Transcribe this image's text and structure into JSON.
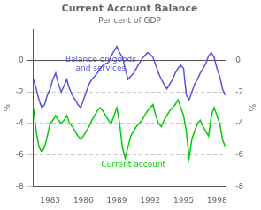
{
  "chart_data": {
    "type": "line",
    "title": "Current Account Balance",
    "subtitle": "Per cent of GDP",
    "ylabel": "%",
    "y2label": "%",
    "x": [
      1981.5,
      1981.75,
      1982.0,
      1982.25,
      1982.5,
      1982.75,
      1983.0,
      1983.25,
      1983.5,
      1983.75,
      1984.0,
      1984.25,
      1984.5,
      1984.75,
      1985.0,
      1985.25,
      1985.5,
      1985.75,
      1986.0,
      1986.25,
      1986.5,
      1986.75,
      1987.0,
      1987.25,
      1987.5,
      1987.75,
      1988.0,
      1988.25,
      1988.5,
      1988.75,
      1989.0,
      1989.25,
      1989.5,
      1989.75,
      1990.0,
      1990.25,
      1990.5,
      1990.75,
      1991.0,
      1991.25,
      1991.5,
      1991.75,
      1992.0,
      1992.25,
      1992.5,
      1992.75,
      1993.0,
      1993.25,
      1993.5,
      1993.75,
      1994.0,
      1994.25,
      1994.5,
      1994.75,
      1995.0,
      1995.25,
      1995.5,
      1995.75,
      1996.0,
      1996.25,
      1996.5,
      1996.75,
      1997.0,
      1997.25,
      1997.5,
      1997.75,
      1998.0,
      1998.25,
      1998.5,
      1998.75
    ],
    "series": [
      {
        "name": "Balance on goods\nand services",
        "color": "#5555dd",
        "values": [
          -1.2,
          -1.8,
          -2.5,
          -3.0,
          -2.8,
          -2.2,
          -1.8,
          -1.2,
          -0.8,
          -1.5,
          -2.0,
          -1.6,
          -1.2,
          -1.8,
          -2.2,
          -2.5,
          -2.8,
          -3.0,
          -2.5,
          -2.0,
          -1.5,
          -1.2,
          -1.0,
          -0.8,
          -0.5,
          -0.3,
          -0.2,
          -0.1,
          0.3,
          0.6,
          0.9,
          0.5,
          0.2,
          -0.5,
          -1.2,
          -1.0,
          -0.8,
          -0.5,
          -0.2,
          0.1,
          0.3,
          0.5,
          0.4,
          0.2,
          -0.3,
          -0.8,
          -1.2,
          -1.5,
          -1.8,
          -1.5,
          -1.2,
          -0.8,
          -0.5,
          -0.3,
          -0.5,
          -2.2,
          -2.5,
          -2.0,
          -1.5,
          -1.2,
          -0.8,
          -0.5,
          -0.2,
          0.3,
          0.5,
          0.2,
          -0.5,
          -1.0,
          -1.8,
          -2.2
        ]
      },
      {
        "name": "Current account",
        "color": "#00cc00",
        "values": [
          -3.0,
          -4.5,
          -5.5,
          -5.8,
          -5.5,
          -4.8,
          -4.0,
          -3.8,
          -3.5,
          -3.8,
          -4.0,
          -3.8,
          -3.5,
          -4.0,
          -4.2,
          -4.5,
          -4.8,
          -5.0,
          -4.8,
          -4.5,
          -4.2,
          -3.8,
          -3.5,
          -3.2,
          -3.0,
          -3.2,
          -3.5,
          -3.8,
          -4.0,
          -3.5,
          -3.0,
          -4.0,
          -5.5,
          -6.2,
          -5.5,
          -4.8,
          -4.5,
          -4.2,
          -4.0,
          -3.8,
          -3.5,
          -3.2,
          -3.0,
          -2.8,
          -3.5,
          -4.0,
          -4.2,
          -3.8,
          -3.5,
          -3.2,
          -3.0,
          -2.8,
          -2.5,
          -3.0,
          -3.5,
          -4.5,
          -6.2,
          -5.0,
          -4.5,
          -4.0,
          -3.8,
          -4.2,
          -4.5,
          -4.8,
          -3.5,
          -3.0,
          -3.5,
          -4.0,
          -5.0,
          -5.5
        ]
      }
    ],
    "xlim": [
      1981.5,
      1998.8
    ],
    "xticks": [
      1983,
      1986,
      1989,
      1992,
      1995,
      1998
    ],
    "ylim": [
      -8,
      2
    ],
    "yticks": [
      -8,
      -6,
      -4,
      -2,
      0
    ],
    "y2lim": [
      -8,
      2
    ],
    "y2ticks": [
      -8,
      -6,
      -4,
      -2,
      0
    ],
    "grid": true
  }
}
